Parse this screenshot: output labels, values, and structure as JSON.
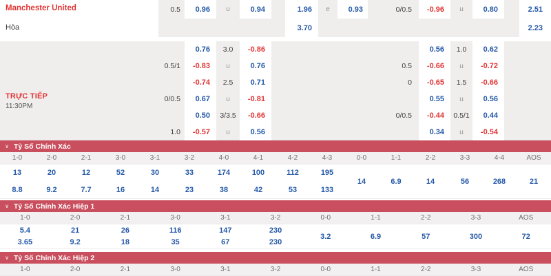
{
  "colors": {
    "accent_red": "#e23434",
    "odds_blue": "#2458a8",
    "section_bar_red": "#c94f5e",
    "grid_gray": "#f0eded"
  },
  "icons": {
    "chevron_down": "∨"
  },
  "oddsGrid": {
    "teamName": "Manchester United",
    "drawLabel": "Hòa",
    "liveLabel": "TRỰC TIẾP",
    "liveTime": "11:30PM",
    "rows": [
      {
        "style": "light",
        "cells": [
          {
            "c": 1,
            "t": "0.5",
            "k": "line"
          },
          {
            "c": 2,
            "t": "0.96",
            "k": "odds"
          },
          {
            "c": 3,
            "t": "u",
            "k": "ind"
          },
          {
            "c": 4,
            "t": "0.94",
            "k": "odds"
          },
          {
            "c": 6,
            "t": "1.96",
            "k": "odds"
          },
          {
            "c": 7,
            "t": "e",
            "k": "ind"
          },
          {
            "c": 8,
            "t": "0.93",
            "k": "odds"
          },
          {
            "c": 10,
            "t": "0/0.5",
            "k": "line"
          },
          {
            "c": 11,
            "t": "-0.96",
            "k": "odds"
          },
          {
            "c": 12,
            "t": "u",
            "k": "ind"
          },
          {
            "c": 13,
            "t": "0.80",
            "k": "odds"
          },
          {
            "c": 15,
            "t": "2.51",
            "k": "odds"
          }
        ]
      },
      {
        "style": "light",
        "cells": [
          {
            "c": 6,
            "t": "3.70",
            "k": "odds"
          },
          {
            "c": 15,
            "t": "2.23",
            "k": "odds"
          }
        ]
      },
      {
        "style": "gray",
        "cells": [
          {
            "c": 2,
            "t": "0.76",
            "k": "odds"
          },
          {
            "c": 3,
            "t": "3.0",
            "k": "line"
          },
          {
            "c": 4,
            "t": "-0.86",
            "k": "odds"
          },
          {
            "c": 11,
            "t": "0.56",
            "k": "odds"
          },
          {
            "c": 12,
            "t": "1.0",
            "k": "line"
          },
          {
            "c": 13,
            "t": "0.62",
            "k": "odds"
          }
        ]
      },
      {
        "style": "gray",
        "cells": [
          {
            "c": 1,
            "t": "0.5/1",
            "k": "line"
          },
          {
            "c": 2,
            "t": "-0.83",
            "k": "odds"
          },
          {
            "c": 3,
            "t": "u",
            "k": "ind"
          },
          {
            "c": 4,
            "t": "0.76",
            "k": "odds"
          },
          {
            "c": 10,
            "t": "0.5",
            "k": "line"
          },
          {
            "c": 11,
            "t": "-0.66",
            "k": "odds"
          },
          {
            "c": 12,
            "t": "u",
            "k": "ind"
          },
          {
            "c": 13,
            "t": "-0.72",
            "k": "odds"
          }
        ]
      },
      {
        "style": "gray",
        "cells": [
          {
            "c": 2,
            "t": "-0.74",
            "k": "odds"
          },
          {
            "c": 3,
            "t": "2.5",
            "k": "line"
          },
          {
            "c": 4,
            "t": "0.71",
            "k": "odds"
          },
          {
            "c": 10,
            "t": "0",
            "k": "line"
          },
          {
            "c": 11,
            "t": "-0.65",
            "k": "odds"
          },
          {
            "c": 12,
            "t": "1.5",
            "k": "line"
          },
          {
            "c": 13,
            "t": "-0.66",
            "k": "odds"
          }
        ]
      },
      {
        "style": "gray",
        "cells": [
          {
            "c": 1,
            "t": "0/0.5",
            "k": "line"
          },
          {
            "c": 2,
            "t": "0.67",
            "k": "odds"
          },
          {
            "c": 3,
            "t": "u",
            "k": "ind"
          },
          {
            "c": 4,
            "t": "-0.81",
            "k": "odds"
          },
          {
            "c": 11,
            "t": "0.55",
            "k": "odds"
          },
          {
            "c": 12,
            "t": "u",
            "k": "ind"
          },
          {
            "c": 13,
            "t": "0.56",
            "k": "odds"
          }
        ]
      },
      {
        "style": "gray",
        "cells": [
          {
            "c": 2,
            "t": "0.50",
            "k": "odds"
          },
          {
            "c": 3,
            "t": "3/3.5",
            "k": "line"
          },
          {
            "c": 4,
            "t": "-0.66",
            "k": "odds"
          },
          {
            "c": 10,
            "t": "0/0.5",
            "k": "line"
          },
          {
            "c": 11,
            "t": "-0.44",
            "k": "odds"
          },
          {
            "c": 12,
            "t": "0.5/1",
            "k": "line"
          },
          {
            "c": 13,
            "t": "0.44",
            "k": "odds"
          }
        ]
      },
      {
        "style": "gray",
        "cells": [
          {
            "c": 1,
            "t": "1.0",
            "k": "line"
          },
          {
            "c": 2,
            "t": "-0.57",
            "k": "odds"
          },
          {
            "c": 3,
            "t": "u",
            "k": "ind"
          },
          {
            "c": 4,
            "t": "0.56",
            "k": "odds"
          },
          {
            "c": 11,
            "t": "0.34",
            "k": "odds"
          },
          {
            "c": 12,
            "t": "u",
            "k": "ind"
          },
          {
            "c": 13,
            "t": "-0.54",
            "k": "odds"
          }
        ]
      }
    ]
  },
  "scoreSections": [
    {
      "title": "Tỷ Số Chính Xác",
      "columns": [
        {
          "label": "1-0",
          "values": [
            "13",
            "8.8"
          ]
        },
        {
          "label": "2-0",
          "values": [
            "20",
            "9.2"
          ]
        },
        {
          "label": "2-1",
          "values": [
            "12",
            "7.7"
          ]
        },
        {
          "label": "3-0",
          "values": [
            "52",
            "16"
          ]
        },
        {
          "label": "3-1",
          "values": [
            "30",
            "14"
          ]
        },
        {
          "label": "3-2",
          "values": [
            "33",
            "23"
          ]
        },
        {
          "label": "4-0",
          "values": [
            "174",
            "38"
          ]
        },
        {
          "label": "4-1",
          "values": [
            "100",
            "42"
          ]
        },
        {
          "label": "4-2",
          "values": [
            "112",
            "53"
          ]
        },
        {
          "label": "4-3",
          "values": [
            "195",
            "133"
          ]
        },
        {
          "label": "0-0",
          "values": [
            "14"
          ]
        },
        {
          "label": "1-1",
          "values": [
            "6.9"
          ]
        },
        {
          "label": "2-2",
          "values": [
            "14"
          ]
        },
        {
          "label": "3-3",
          "values": [
            "56"
          ]
        },
        {
          "label": "4-4",
          "values": [
            "268"
          ]
        },
        {
          "label": "AOS",
          "values": [
            "21"
          ]
        }
      ]
    },
    {
      "title": "Tỷ Số Chính Xác Hiệp 1",
      "columns": [
        {
          "label": "1-0",
          "values": [
            "5.4",
            "3.65"
          ]
        },
        {
          "label": "2-0",
          "values": [
            "21",
            "9.2"
          ]
        },
        {
          "label": "2-1",
          "values": [
            "26",
            "18"
          ]
        },
        {
          "label": "3-0",
          "values": [
            "116",
            "35"
          ]
        },
        {
          "label": "3-1",
          "values": [
            "147",
            "67"
          ]
        },
        {
          "label": "3-2",
          "values": [
            "230",
            "230"
          ]
        },
        {
          "label": "0-0",
          "values": [
            "3.2"
          ]
        },
        {
          "label": "1-1",
          "values": [
            "6.9"
          ]
        },
        {
          "label": "2-2",
          "values": [
            "57"
          ]
        },
        {
          "label": "3-3",
          "values": [
            "300"
          ]
        },
        {
          "label": "AOS",
          "values": [
            "72"
          ]
        }
      ]
    },
    {
      "title": "Tỷ Số Chính Xác Hiệp 2",
      "columns": [
        {
          "label": "1-0",
          "values": []
        },
        {
          "label": "2-0",
          "values": []
        },
        {
          "label": "2-1",
          "values": []
        },
        {
          "label": "3-0",
          "values": []
        },
        {
          "label": "3-1",
          "values": []
        },
        {
          "label": "3-2",
          "values": []
        },
        {
          "label": "0-0",
          "values": []
        },
        {
          "label": "1-1",
          "values": []
        },
        {
          "label": "2-2",
          "values": []
        },
        {
          "label": "3-3",
          "values": []
        },
        {
          "label": "AOS",
          "values": []
        }
      ]
    }
  ]
}
